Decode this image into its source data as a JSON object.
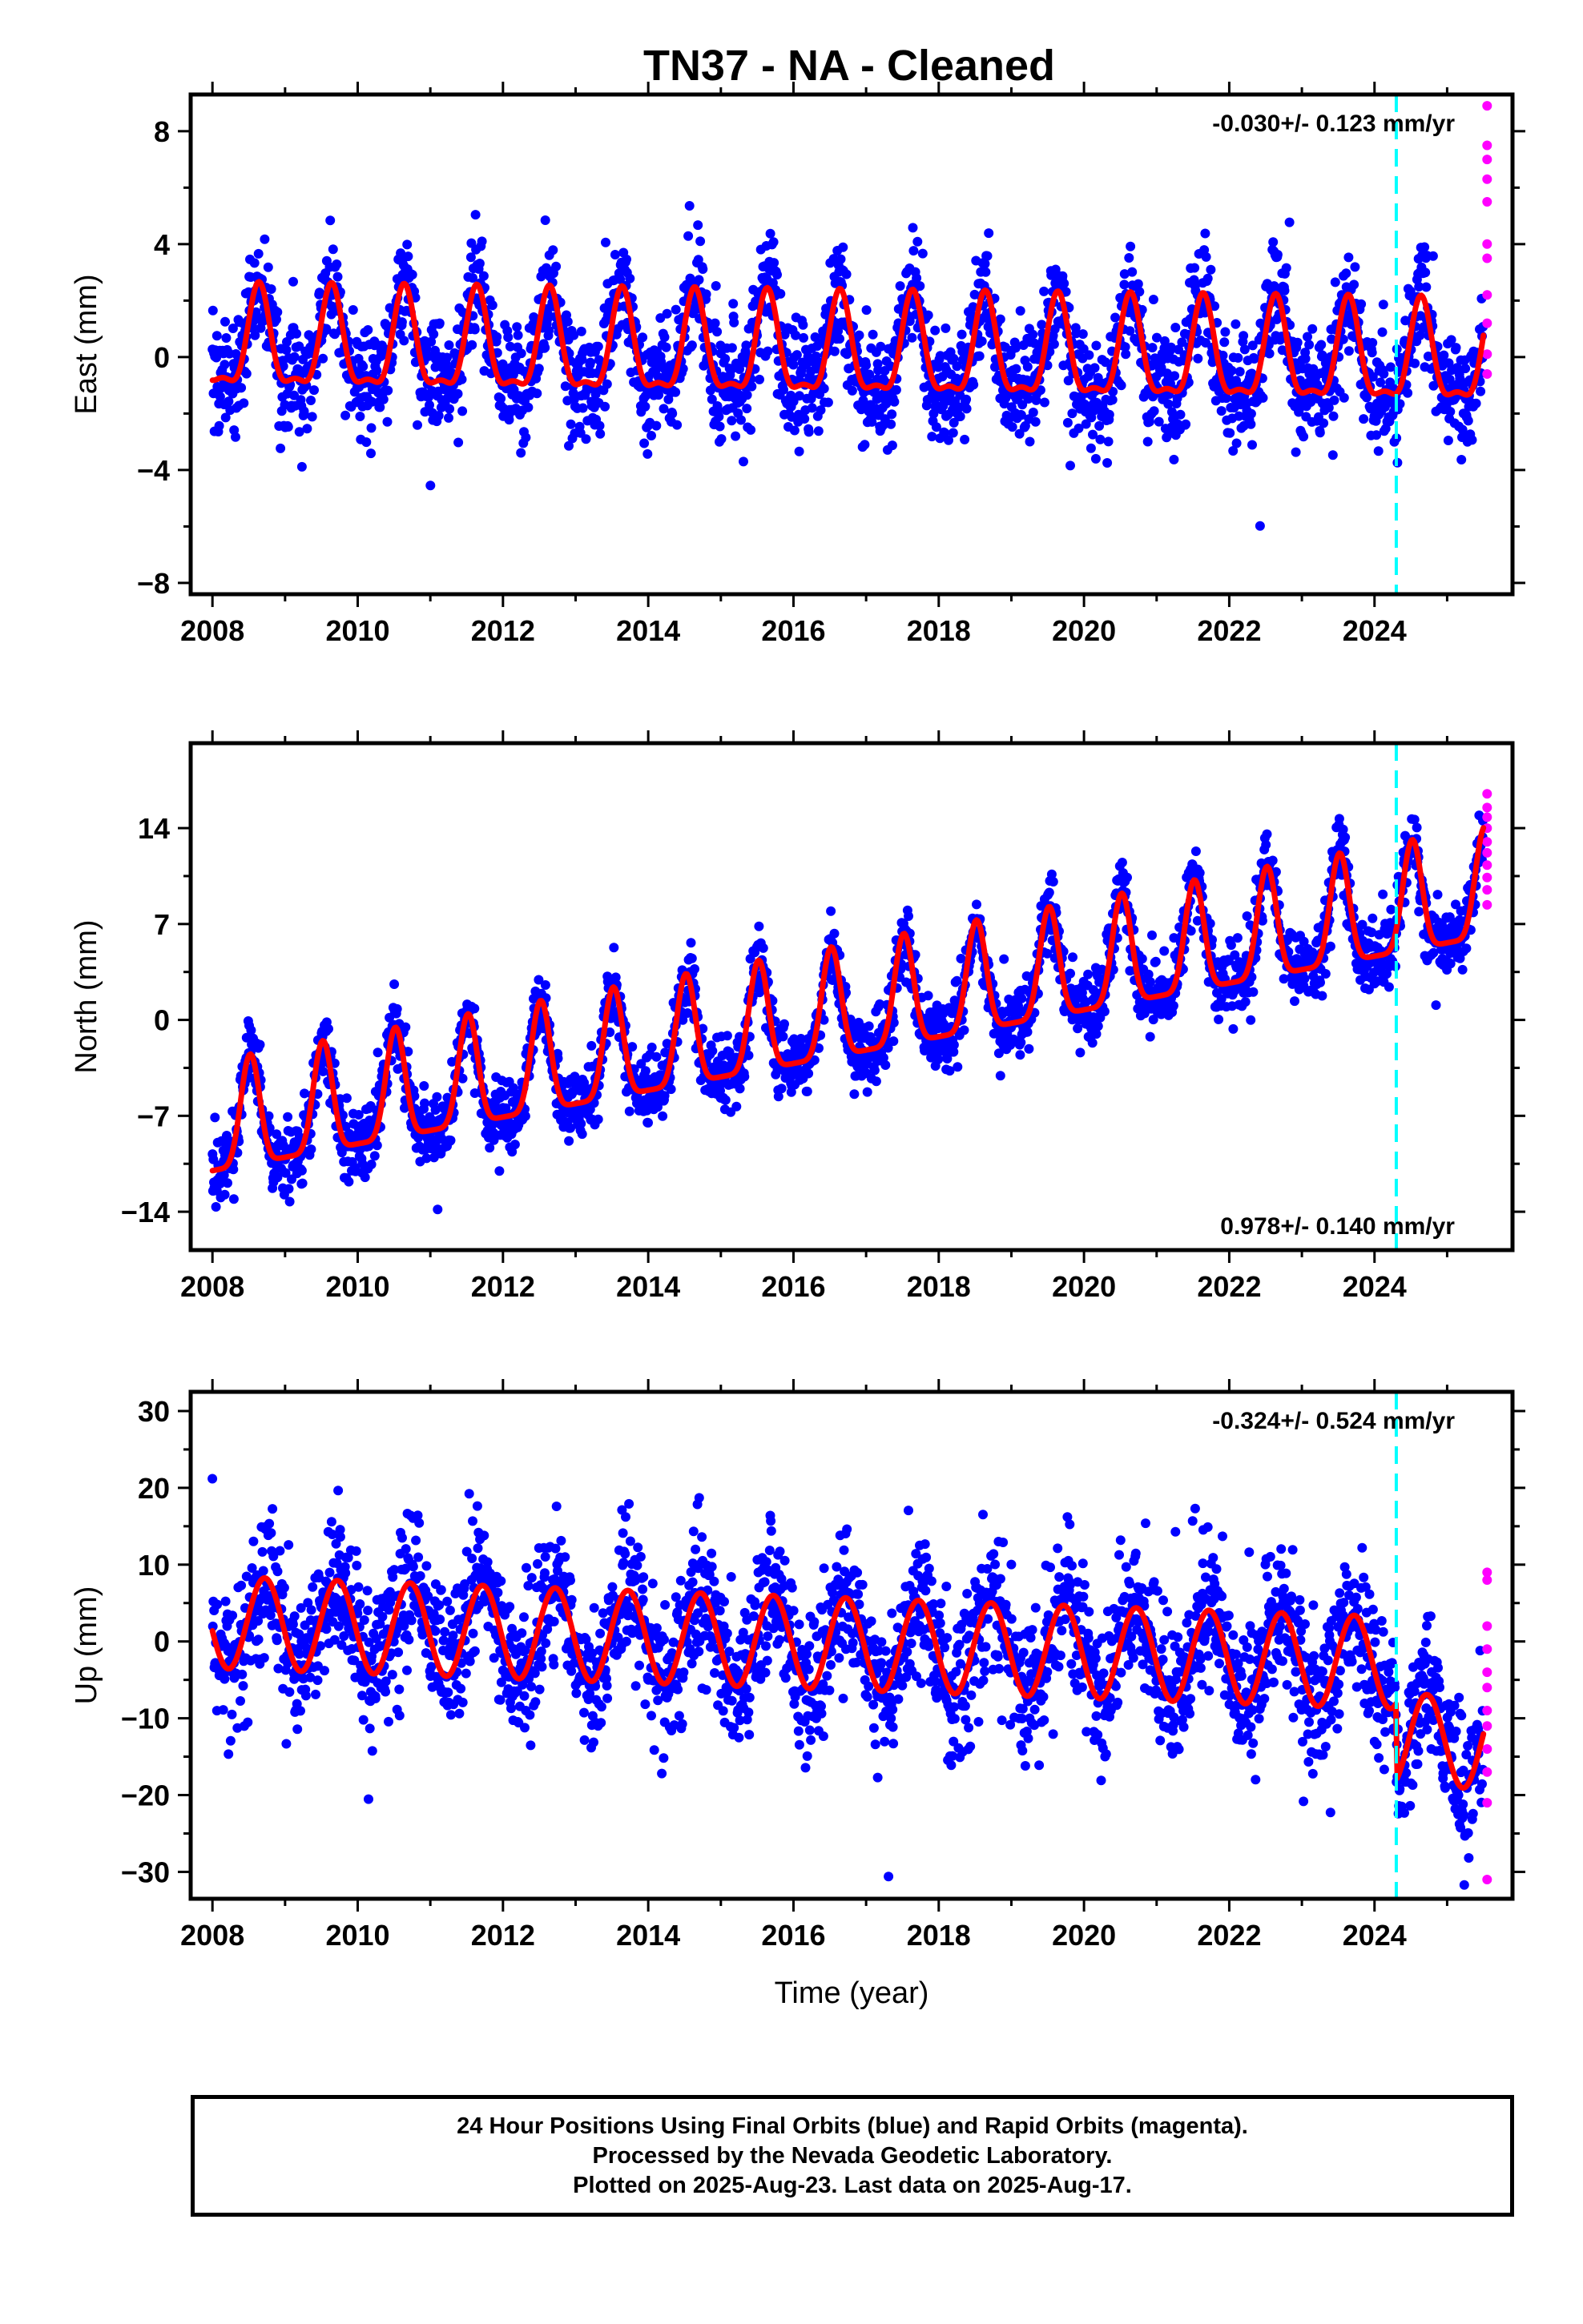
{
  "title": "TN37  - NA - Cleaned",
  "footer": {
    "line1": "24 Hour Positions Using Final Orbits (blue) and Rapid Orbits (magenta).",
    "line2": "Processed by the Nevada Geodetic Laboratory.",
    "line3": "Plotted on 2025-Aug-23. Last data on 2025-Aug-17."
  },
  "colors": {
    "final_orbits": "#0000ff",
    "rapid_orbits": "#ff00ff",
    "model_fit": "#ff0000",
    "event_line": "#00ffff",
    "frame": "#000000"
  },
  "chart_data": [
    {
      "type": "scatter",
      "name": "east",
      "xlabel": "",
      "ylabel": "East (mm)",
      "xlim": [
        2007.7,
        2025.9
      ],
      "ylim": [
        -8.4,
        9.3
      ],
      "xticks": [
        2008,
        2010,
        2012,
        2014,
        2016,
        2018,
        2020,
        2022,
        2024
      ],
      "xtick_labels": [
        "2008",
        "2010",
        "2012",
        "2014",
        "2016",
        "2018",
        "2020",
        "2022",
        "2024"
      ],
      "yticks": [
        -8,
        -4,
        0,
        4,
        8
      ],
      "ytick_labels": [
        "−8",
        "−4",
        "0",
        "4",
        "8"
      ],
      "rate_text": "-0.030+/- 0.123 mm/yr",
      "rate_position": "top-right",
      "event_line_x": 2024.3,
      "rapid_x": 2025.55,
      "rapid_y": [
        8.9,
        7.5,
        7.0,
        6.3,
        5.5,
        4.0,
        3.5,
        2.2,
        1.2,
        0.1,
        -0.6
      ],
      "model": {
        "offset": -0.02,
        "rate_mm_per_yr": -0.03,
        "annual_amp": 1.55,
        "peak_phase_yr": 0.64,
        "peak_sharpness": 2.2,
        "noise_mm": 1.0
      }
    },
    {
      "type": "scatter",
      "name": "north",
      "xlabel": "",
      "ylabel": "North (mm)",
      "xlim": [
        2007.7,
        2025.9
      ],
      "ylim": [
        -16.8,
        20.2
      ],
      "xticks": [
        2008,
        2010,
        2012,
        2014,
        2016,
        2018,
        2020,
        2022,
        2024
      ],
      "xtick_labels": [
        "2008",
        "2010",
        "2012",
        "2014",
        "2016",
        "2018",
        "2020",
        "2022",
        "2024"
      ],
      "yticks": [
        -14,
        -7,
        0,
        7,
        14
      ],
      "ytick_labels": [
        "−14",
        "−7",
        "0",
        "7",
        "14"
      ],
      "rate_text": "0.978+/- 0.140 mm/yr",
      "rate_position": "bottom-right",
      "event_line_x": 2024.3,
      "rapid_x": 2025.55,
      "rapid_y": [
        16.5,
        15.5,
        14.8,
        14.0,
        13.0,
        12.2,
        11.3,
        10.4,
        9.5,
        8.4
      ],
      "model": {
        "start_value": -11.0,
        "rate_mm_per_yr": 0.978,
        "annual_amp": 8.0,
        "peak_phase_yr": 0.52,
        "peak_sharpness": 3.0,
        "noise_mm": 1.3
      }
    },
    {
      "type": "scatter",
      "name": "up",
      "xlabel": "Time (year)",
      "ylabel": "Up (mm)",
      "xlim": [
        2007.7,
        2025.9
      ],
      "ylim": [
        -33.5,
        32.5
      ],
      "xticks": [
        2008,
        2010,
        2012,
        2014,
        2016,
        2018,
        2020,
        2022,
        2024
      ],
      "xtick_labels": [
        "2008",
        "2010",
        "2012",
        "2014",
        "2016",
        "2018",
        "2020",
        "2022",
        "2024"
      ],
      "yticks": [
        -30,
        -20,
        -10,
        0,
        10,
        20,
        30
      ],
      "ytick_labels": [
        "−30",
        "−20",
        "−10",
        "0",
        "10",
        "20",
        "30"
      ],
      "rate_text": "-0.324+/- 0.524 mm/yr",
      "rate_position": "top-right",
      "event_line_x": 2024.3,
      "rapid_x": 2025.55,
      "rapid_y": [
        9.0,
        8.0,
        2.0,
        -1.0,
        -4.0,
        -6.0,
        -9.0,
        -11.0,
        -14.0,
        -17.0,
        -21.0,
        -31.0
      ],
      "model": {
        "offset": 2.5,
        "rate_mm_per_yr": -0.324,
        "annual_amp": 6.0,
        "peak_phase_yr": 0.72,
        "noise_mm": 4.8,
        "step_at": 2024.3,
        "step_mm": -10.0
      }
    }
  ]
}
